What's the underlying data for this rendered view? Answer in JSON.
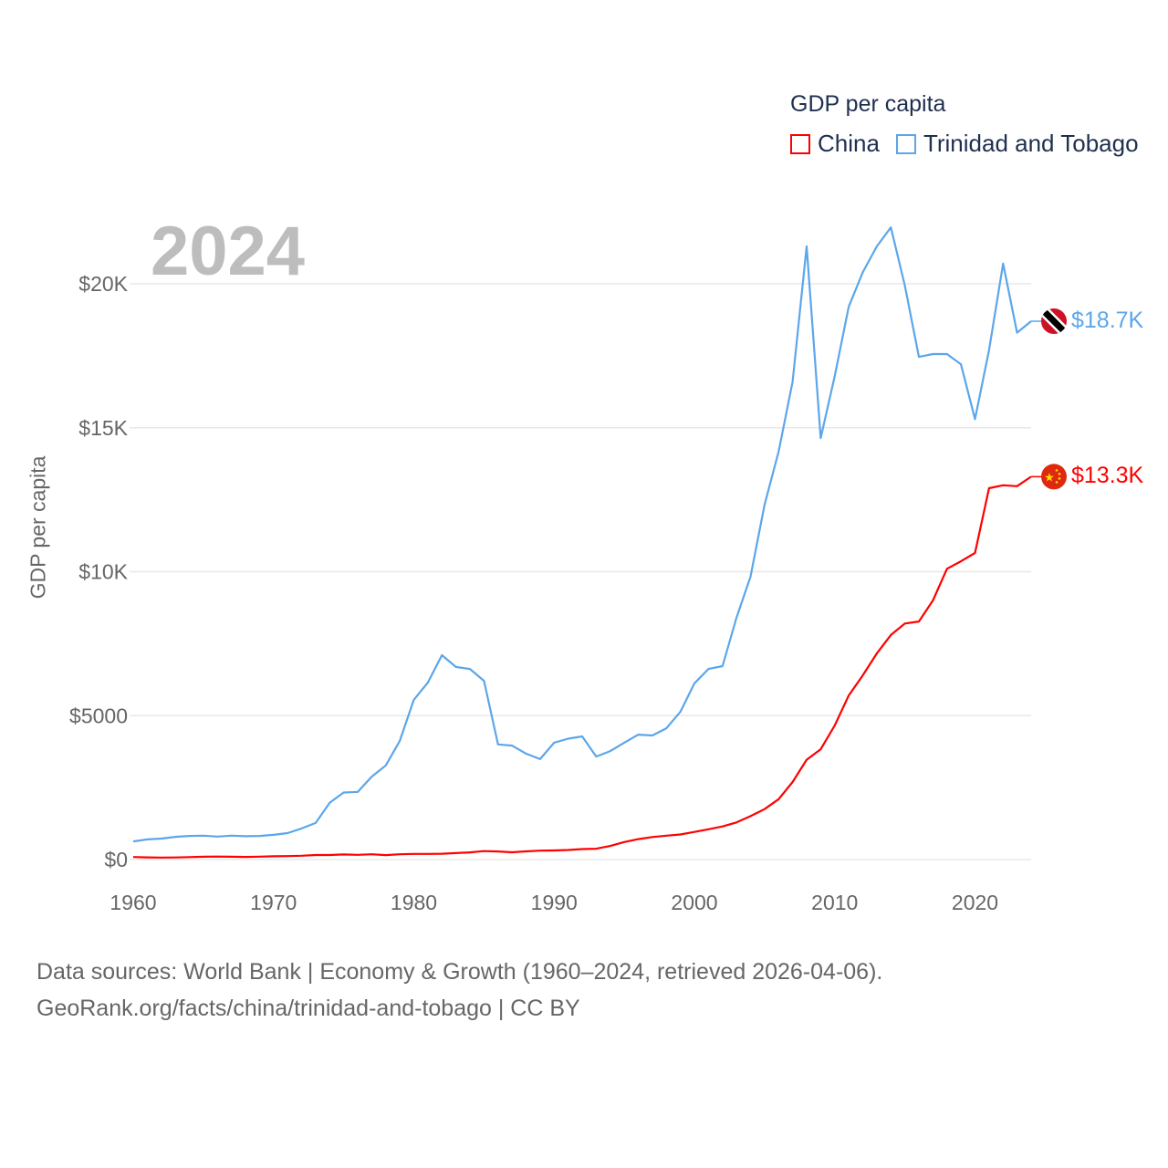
{
  "chart_data": {
    "type": "line",
    "title": "GDP per capita",
    "ylabel": "GDP per capita",
    "xlabel": "",
    "current_year": "2024",
    "xlim": [
      1960,
      2024
    ],
    "ylim": [
      0,
      22000
    ],
    "x_ticks": [
      1960,
      1970,
      1980,
      1990,
      2000,
      2010,
      2020
    ],
    "x_tick_labels": [
      "1960",
      "1970",
      "1980",
      "1990",
      "2000",
      "2010",
      "2020"
    ],
    "y_ticks": [
      0,
      5000,
      10000,
      15000,
      20000
    ],
    "y_tick_labels": [
      "$0",
      "$5000",
      "$10K",
      "$15K",
      "$20K"
    ],
    "grid": true,
    "legend_placement": "top-right",
    "x": [
      1960,
      1961,
      1962,
      1963,
      1964,
      1965,
      1966,
      1967,
      1968,
      1969,
      1970,
      1971,
      1972,
      1973,
      1974,
      1975,
      1976,
      1977,
      1978,
      1979,
      1980,
      1981,
      1982,
      1983,
      1984,
      1985,
      1986,
      1987,
      1988,
      1989,
      1990,
      1991,
      1992,
      1993,
      1994,
      1995,
      1996,
      1997,
      1998,
      1999,
      2000,
      2001,
      2002,
      2003,
      2004,
      2005,
      2006,
      2007,
      2008,
      2009,
      2010,
      2011,
      2012,
      2013,
      2014,
      2015,
      2016,
      2017,
      2018,
      2019,
      2020,
      2021,
      2022,
      2023,
      2024
    ],
    "series": [
      {
        "name": "China",
        "color": "#ff0000",
        "end_label": "$13.3K",
        "flag": "china-flag",
        "values": [
          90,
          76,
          71,
          74,
          85,
          98,
          104,
          97,
          91,
          100,
          113,
          119,
          132,
          157,
          160,
          178,
          165,
          185,
          156,
          183,
          195,
          197,
          203,
          225,
          250,
          294,
          282,
          252,
          284,
          311,
          318,
          333,
          366,
          377,
          473,
          610,
          709,
          782,
          829,
          873,
          959,
          1053,
          1149,
          1289,
          1509,
          1753,
          2099,
          2694,
          3468,
          3832,
          4660,
          5700,
          6400,
          7160,
          7800,
          8200,
          8270,
          9000,
          10100,
          10360,
          10650,
          12900,
          13000,
          12970,
          13300
        ]
      },
      {
        "name": "Trinidad and Tobago",
        "color": "#5ca6ea",
        "end_label": "$18.7K",
        "flag": "trinidad-and-tobago-flag",
        "values": [
          630,
          700,
          730,
          790,
          820,
          830,
          800,
          830,
          810,
          820,
          860,
          920,
          1080,
          1270,
          1970,
          2330,
          2350,
          2880,
          3270,
          4120,
          5550,
          6150,
          7100,
          6690,
          6620,
          6210,
          4000,
          3960,
          3680,
          3490,
          4060,
          4200,
          4280,
          3580,
          3770,
          4060,
          4340,
          4310,
          4560,
          5130,
          6120,
          6620,
          6720,
          8400,
          9830,
          12330,
          14170,
          16600,
          21300,
          14640,
          16800,
          19200,
          20400,
          21300,
          21960,
          19940,
          17460,
          17560,
          17560,
          17200,
          15300,
          17700,
          20700,
          18300,
          18700
        ]
      }
    ]
  },
  "footer": {
    "line1": "Data sources: World Bank | Economy & Growth (1960–2024, retrieved 2026-04-06).",
    "line2": "GeoRank.org/facts/china/trinidad-and-tobago | CC BY"
  }
}
